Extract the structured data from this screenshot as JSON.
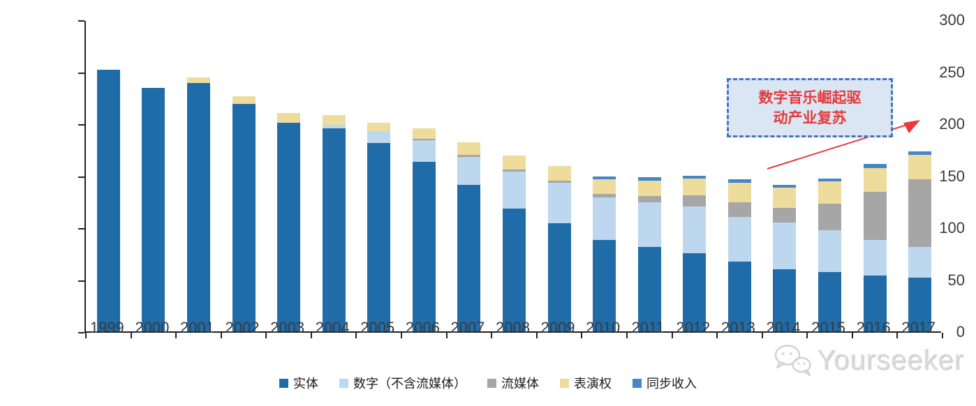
{
  "chart_data": {
    "type": "bar",
    "variant": "stacked",
    "title": "",
    "xlabel": "",
    "ylabel": "",
    "ylim": [
      0,
      300
    ],
    "ytick_step": 50,
    "grid": false,
    "legend_position": "bottom",
    "categories": [
      "1999",
      "2000",
      "2001",
      "2002",
      "2003",
      "2004",
      "2005",
      "2006",
      "2007",
      "2008",
      "2009",
      "2010",
      "2011",
      "2012",
      "2013",
      "2014",
      "2015",
      "2016",
      "2017"
    ],
    "series": [
      {
        "name": "实体",
        "color": "#1f6ca8",
        "values": [
          252,
          234,
          239,
          219,
          201,
          195,
          181,
          163,
          141,
          118,
          104,
          88,
          81,
          75,
          67,
          60,
          57,
          54,
          52
        ]
      },
      {
        "name": "数字（不含流媒体）",
        "color": "#bdd7ee",
        "values": [
          0,
          0,
          0,
          0,
          0,
          4,
          11,
          21,
          27,
          36,
          39,
          41,
          43,
          45,
          43,
          45,
          40,
          34,
          29
        ]
      },
      {
        "name": "流媒体",
        "color": "#a6a6a6",
        "values": [
          0,
          0,
          0,
          0,
          0,
          0,
          0,
          1,
          2,
          2,
          2,
          3,
          6,
          11,
          14,
          14,
          26,
          46,
          65
        ]
      },
      {
        "name": "表演权",
        "color": "#eddc9b",
        "values": [
          0,
          0,
          5,
          7,
          9,
          9,
          9,
          10,
          12,
          13,
          14,
          14,
          15,
          16,
          19,
          19,
          21,
          23,
          24
        ]
      },
      {
        "name": "同步收入",
        "color": "#4587c5",
        "values": [
          0,
          0,
          0,
          0,
          0,
          0,
          0,
          0,
          0,
          0,
          0,
          3,
          3,
          3,
          3,
          3,
          3,
          4,
          3
        ]
      }
    ]
  },
  "annotation": {
    "lines": [
      "数字音乐崛起驱",
      "动产业复苏"
    ],
    "text_color": "#e23b3e",
    "box_fill": "#dbe6f3",
    "box_border": "#4472c4",
    "arrow_color": "#e8393c"
  },
  "watermark": {
    "text": "Yourseeker",
    "icon": "wechat-icon"
  }
}
